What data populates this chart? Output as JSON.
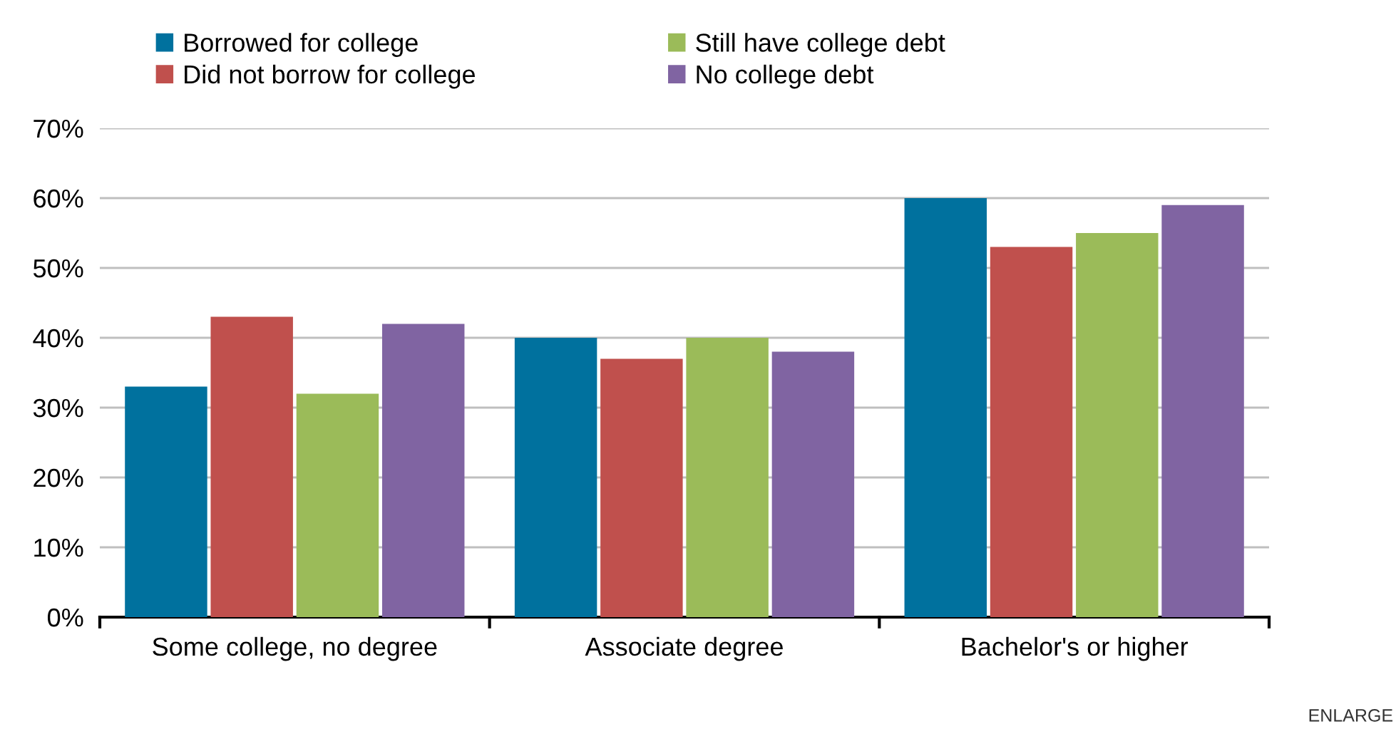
{
  "chart_data": {
    "type": "bar",
    "categories": [
      "Some college, no degree",
      "Associate degree",
      "Bachelor's or higher"
    ],
    "series": [
      {
        "name": "Borrowed for college",
        "color": "#00719e",
        "values": [
          33,
          40,
          60
        ]
      },
      {
        "name": "Did not borrow for college",
        "color": "#c0504d",
        "values": [
          43,
          37,
          53
        ]
      },
      {
        "name": "Still have college debt",
        "color": "#9bbb59",
        "values": [
          32,
          40,
          55
        ]
      },
      {
        "name": "No college debt",
        "color": "#8064a2",
        "values": [
          42,
          38,
          59
        ]
      }
    ],
    "ylim": [
      0,
      70
    ],
    "yticks": [
      {
        "value": 0,
        "label": "0%"
      },
      {
        "value": 10,
        "label": "10%"
      },
      {
        "value": 20,
        "label": "20%"
      },
      {
        "value": 30,
        "label": "30%"
      },
      {
        "value": 40,
        "label": "40%"
      },
      {
        "value": 50,
        "label": "50%"
      },
      {
        "value": 60,
        "label": "60%"
      },
      {
        "value": 70,
        "label": "70%"
      }
    ],
    "grid": "y",
    "legend": "top left",
    "annotations": [
      "ENLARGE"
    ]
  }
}
